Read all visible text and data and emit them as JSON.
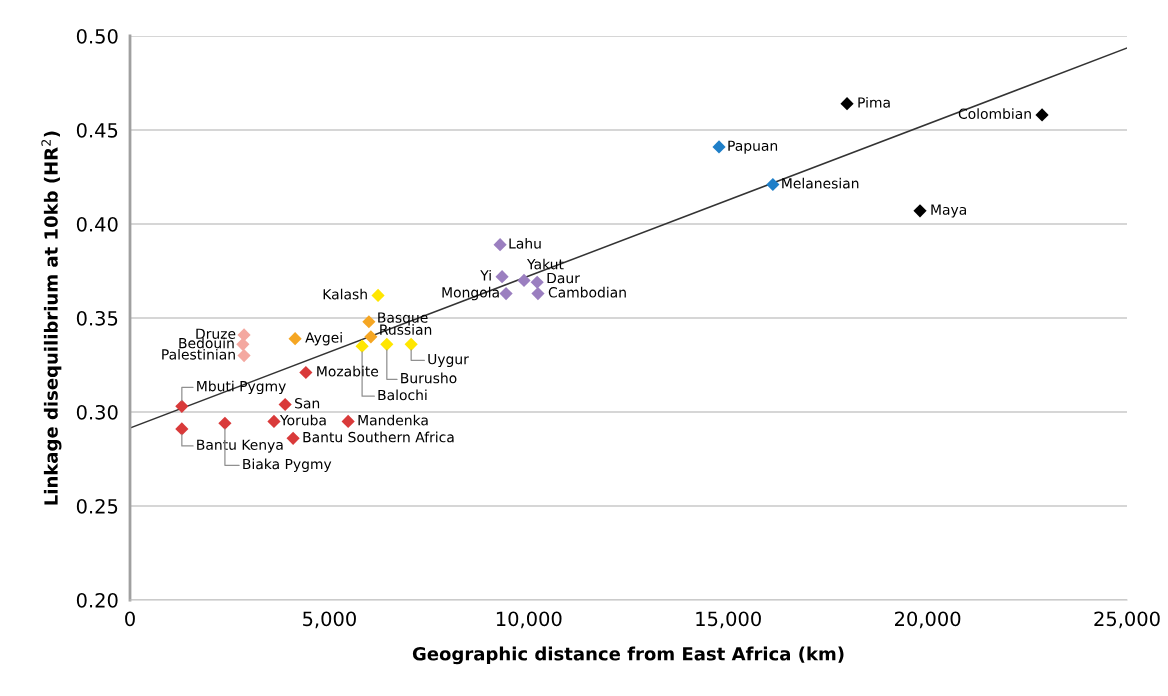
{
  "chart_data": {
    "type": "scatter",
    "xlabel": "Geographic distance from East Africa (km)",
    "ylabel": "Linkage disequilibrium at 10kb (HR$^{2}$)",
    "xlim": [
      0,
      25000
    ],
    "ylim": [
      0.2,
      0.5
    ],
    "xticks": [
      0,
      {
        "value": 5000,
        "label": "5,000"
      },
      {
        "value": 10000,
        "label": "10,000"
      },
      {
        "value": 15000,
        "label": "15,000"
      },
      {
        "value": 20000,
        "label": "20,000"
      },
      {
        "value": 25000,
        "label": "25,000"
      }
    ],
    "yticks": [
      {
        "value": 0.2,
        "label": "0.20"
      },
      0.25,
      {
        "value": 0.3,
        "label": "0.30"
      },
      0.35,
      {
        "value": 0.4,
        "label": "0.40"
      },
      0.45,
      {
        "value": 0.5,
        "label": "0.50"
      }
    ],
    "grid": "y",
    "marker": "diamond",
    "series": [
      {
        "color": "#d93a3a",
        "x": [
          1300,
          3890,
          3610,
          5470,
          1300,
          2380,
          4090,
          4410
        ],
        "values": [
          0.303,
          0.304,
          0.295,
          0.295,
          0.291,
          0.294,
          0.286,
          0.321
        ]
      },
      {
        "color": "#f4a8a0",
        "x": [
          2860,
          2830,
          2860
        ],
        "values": [
          0.341,
          0.336,
          0.33
        ]
      },
      {
        "color": "#f5a623",
        "x": [
          5990,
          6040,
          4140
        ],
        "values": [
          0.348,
          0.34,
          0.339
        ]
      },
      {
        "color": "#ffe600",
        "x": [
          6220,
          5820,
          6440,
          7050
        ],
        "values": [
          0.362,
          0.335,
          0.336,
          0.336
        ]
      },
      {
        "color": "#9b7fc0",
        "x": [
          9280,
          9330,
          9880,
          10210,
          9430,
          10230
        ],
        "values": [
          0.389,
          0.372,
          0.37,
          0.369,
          0.363,
          0.363
        ]
      },
      {
        "color": "#1f7fc8",
        "x": [
          14770,
          16120
        ],
        "values": [
          0.441,
          0.421
        ]
      },
      {
        "color": "#000000",
        "x": [
          17980,
          22870,
          19810
        ],
        "values": [
          0.464,
          0.458,
          0.407
        ]
      },
      {
        "type": "line",
        "marker": "none",
        "color": "#333333",
        "x": [
          0,
          25000
        ],
        "values": [
          0.2915,
          0.4936
        ]
      }
    ],
    "annotations": [
      {
        "text": "Pima",
        "x": 17980,
        "y": 0.464
      },
      {
        "text": "Colombian",
        "x": 22870,
        "y": 0.458
      },
      {
        "text": "Maya",
        "x": 19810,
        "y": 0.407
      },
      {
        "text": "Papuan",
        "x": 14770,
        "y": 0.441
      },
      {
        "text": "Melanesian",
        "x": 16120,
        "y": 0.421
      },
      {
        "text": "Lahu",
        "x": 9280,
        "y": 0.389
      },
      {
        "text": "Yi",
        "x": 9330,
        "y": 0.372
      },
      {
        "text": "Yakut",
        "x": 9880,
        "y": 0.37
      },
      {
        "text": "Daur",
        "x": 10210,
        "y": 0.369
      },
      {
        "text": "Mongola",
        "x": 9430,
        "y": 0.363
      },
      {
        "text": "Cambodian",
        "x": 10230,
        "y": 0.363
      },
      {
        "text": "Kalash",
        "x": 6220,
        "y": 0.362
      },
      {
        "text": "Basque",
        "x": 5990,
        "y": 0.348
      },
      {
        "text": "Russian",
        "x": 6040,
        "y": 0.34
      },
      {
        "text": "Aygei",
        "x": 4140,
        "y": 0.339
      },
      {
        "text": "Balochi",
        "x": 5820,
        "y": 0.335
      },
      {
        "text": "Burusho",
        "x": 6440,
        "y": 0.336
      },
      {
        "text": "Uygur",
        "x": 7050,
        "y": 0.336
      },
      {
        "text": "Druze",
        "x": 2860,
        "y": 0.341
      },
      {
        "text": "Bedouin",
        "x": 2830,
        "y": 0.336
      },
      {
        "text": "Palestinian",
        "x": 2860,
        "y": 0.33
      },
      {
        "text": "Mozabite",
        "x": 4410,
        "y": 0.321
      },
      {
        "text": "Mbuti Pygmy",
        "x": 1300,
        "y": 0.303
      },
      {
        "text": "San",
        "x": 3890,
        "y": 0.304
      },
      {
        "text": "Yoruba",
        "x": 3610,
        "y": 0.295
      },
      {
        "text": "Mandenka",
        "x": 5470,
        "y": 0.295
      },
      {
        "text": "Bantu Kenya",
        "x": 1300,
        "y": 0.291
      },
      {
        "text": "Biaka Pygmy",
        "x": 2380,
        "y": 0.294
      },
      {
        "text": "Bantu Southern Africa",
        "x": 4090,
        "y": 0.286
      }
    ]
  }
}
